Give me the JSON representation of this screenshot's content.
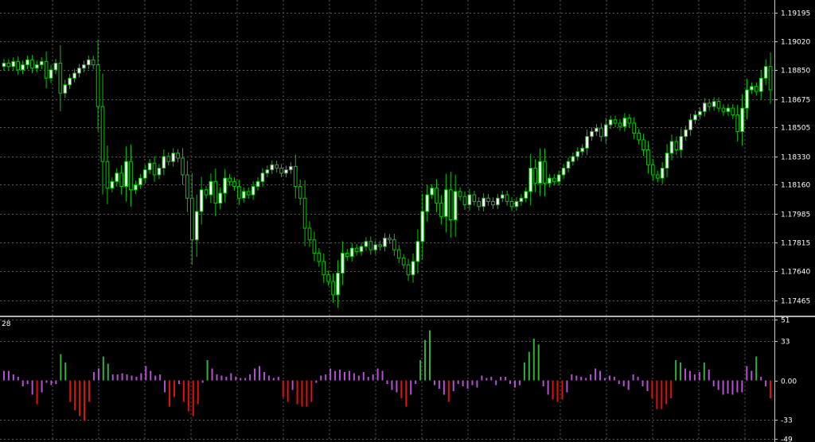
{
  "theme": {
    "background": "#000000",
    "grid": "#5a5a5a",
    "axis": "#c8c8c8",
    "separator": "#b4b4b4",
    "text": "#ffffff",
    "candle_up": "#ffffff",
    "candle_down": "#000000",
    "candle_border": "#00c800",
    "wick": "#00c800",
    "osc_pos_strong": "#2fb03a",
    "osc_neg_strong": "#e01010",
    "osc_weak": "#b54fd6"
  },
  "chart_data": [
    {
      "type": "candlestick",
      "title": "",
      "grid": true,
      "ylim": [
        1.1738,
        1.1925
      ],
      "y_ticks": [
        "1.19195",
        "1.19020",
        "1.18850",
        "1.18675",
        "1.18505",
        "1.18330",
        "1.18160",
        "1.17985",
        "1.17815",
        "1.17640",
        "1.17465"
      ],
      "closes": [
        1.1889,
        1.1887,
        1.189,
        1.1885,
        1.1888,
        1.1891,
        1.1886,
        1.1888,
        1.189,
        1.188,
        1.1885,
        1.1889,
        1.1871,
        1.1876,
        1.188,
        1.1883,
        1.1886,
        1.1888,
        1.1891,
        1.1888,
        1.1863,
        1.183,
        1.1814,
        1.1818,
        1.1823,
        1.1815,
        1.183,
        1.1813,
        1.1816,
        1.182,
        1.1825,
        1.1829,
        1.1822,
        1.1826,
        1.1833,
        1.183,
        1.1835,
        1.1832,
        1.1822,
        1.1808,
        1.1783,
        1.18,
        1.1813,
        1.181,
        1.1818,
        1.1805,
        1.1811,
        1.182,
        1.1818,
        1.1815,
        1.1808,
        1.1812,
        1.181,
        1.1815,
        1.1818,
        1.1823,
        1.1825,
        1.1828,
        1.1826,
        1.1823,
        1.1825,
        1.1827,
        1.1815,
        1.1808,
        1.179,
        1.1783,
        1.1775,
        1.177,
        1.1762,
        1.1758,
        1.175,
        1.1763,
        1.1775,
        1.1773,
        1.1778,
        1.1776,
        1.1779,
        1.1782,
        1.1777,
        1.178,
        1.1779,
        1.1784,
        1.1783,
        1.1777,
        1.1772,
        1.1768,
        1.1762,
        1.177,
        1.1782,
        1.18,
        1.181,
        1.1814,
        1.1805,
        1.1797,
        1.1813,
        1.1795,
        1.1812,
        1.1809,
        1.1804,
        1.181,
        1.1806,
        1.1803,
        1.1808,
        1.1806,
        1.1804,
        1.1808,
        1.181,
        1.1806,
        1.1803,
        1.1806,
        1.1808,
        1.1812,
        1.1826,
        1.1817,
        1.183,
        1.1817,
        1.182,
        1.1818,
        1.1822,
        1.1826,
        1.183,
        1.1833,
        1.1836,
        1.1838,
        1.1845,
        1.1848,
        1.185,
        1.1845,
        1.1852,
        1.1855,
        1.1853,
        1.1851,
        1.1856,
        1.1853,
        1.1847,
        1.1843,
        1.1837,
        1.1828,
        1.1822,
        1.182,
        1.1826,
        1.1835,
        1.1842,
        1.1837,
        1.1845,
        1.1849,
        1.1855,
        1.1858,
        1.186,
        1.1865,
        1.1863,
        1.1866,
        1.1862,
        1.186,
        1.1862,
        1.1858,
        1.1848,
        1.1862,
        1.1873,
        1.1875,
        1.1872,
        1.188,
        1.1887,
        1.1873
      ],
      "series_meta": {
        "up_color": "#ffffff",
        "down_color": "#000000"
      }
    },
    {
      "type": "bar",
      "title": "",
      "grid": true,
      "ylim": [
        -49,
        51
      ],
      "y_ticks": [
        "51",
        "33",
        "0.00",
        "-33",
        "-49"
      ],
      "top_left_label": "28",
      "values": [
        8,
        8,
        5,
        3,
        -5,
        -3,
        -12,
        -20,
        -10,
        -2,
        -4,
        -3,
        22,
        15,
        -18,
        -25,
        -30,
        -34,
        -18,
        7,
        10,
        20,
        14,
        5,
        5,
        6,
        5,
        4,
        3,
        6,
        12,
        8,
        4,
        5,
        -10,
        -22,
        -14,
        -3,
        -18,
        -26,
        -30,
        -20,
        -2,
        17,
        10,
        5,
        4,
        3,
        6,
        3,
        2,
        2,
        5,
        10,
        12,
        7,
        4,
        2,
        3,
        -14,
        -18,
        -8,
        -20,
        -22,
        -22,
        -18,
        -2,
        4,
        5,
        10,
        8,
        9,
        7,
        8,
        6,
        4,
        7,
        3,
        5,
        10,
        8,
        -3,
        -8,
        -10,
        -15,
        -22,
        -12,
        -3,
        17,
        34,
        42,
        -4,
        -7,
        -12,
        -18,
        -9,
        -3,
        -5,
        -7,
        -4,
        -6,
        4,
        2,
        3,
        -4,
        3,
        3,
        -3,
        -6,
        -4,
        15,
        24,
        35,
        30,
        -5,
        -12,
        -16,
        -18,
        -16,
        -10,
        5,
        4,
        3,
        2,
        5,
        10,
        8,
        2,
        4,
        3,
        -3,
        -5,
        -8,
        5,
        3,
        -5,
        -9,
        -15,
        -24,
        -24,
        -20,
        -15,
        17,
        15,
        10,
        8,
        5,
        7,
        15,
        9,
        -5,
        -8,
        -12,
        -11,
        -12,
        -10,
        -10,
        12,
        8,
        20,
        3,
        -5,
        -15
      ]
    }
  ]
}
